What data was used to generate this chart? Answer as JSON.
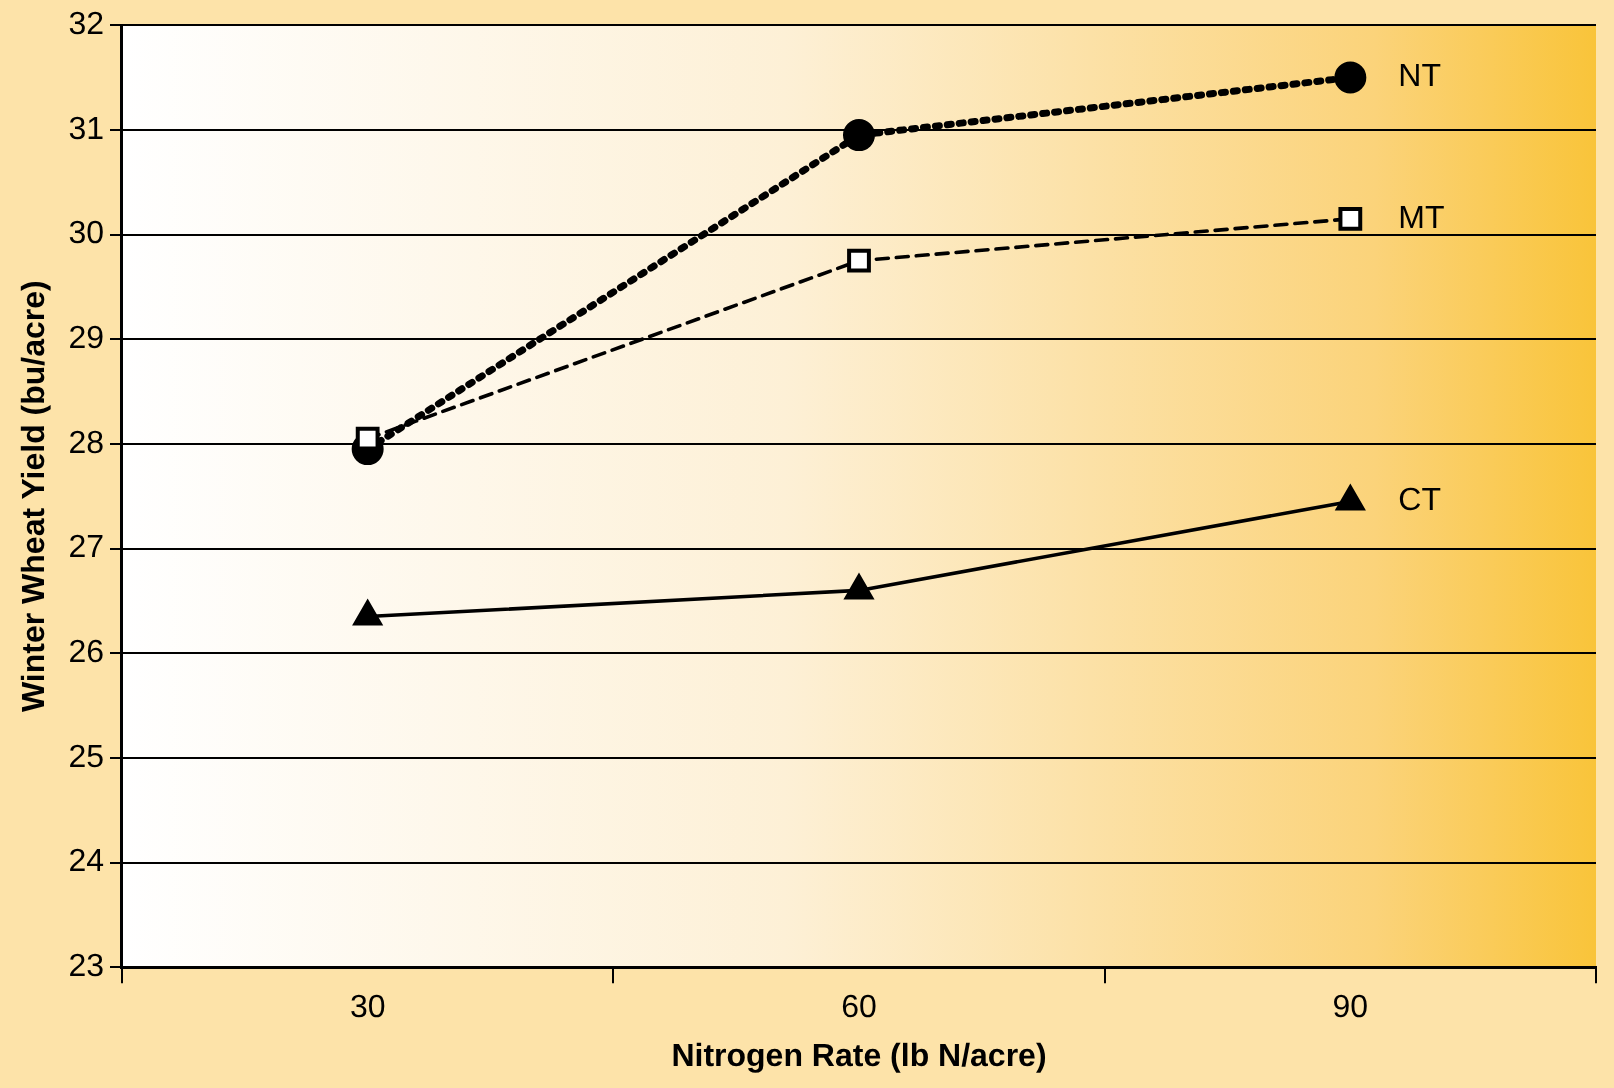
{
  "chart_data": {
    "type": "line",
    "xlabel": "Nitrogen Rate (lb N/acre)",
    "ylabel": "Winter Wheat Yield (bu/acre)",
    "categories": [
      "30",
      "60",
      "90"
    ],
    "series": [
      {
        "name": "NT",
        "color": "#000000",
        "values": [
          27.95,
          30.95,
          31.5
        ],
        "marker": "circle",
        "line_style": "dotted"
      },
      {
        "name": "MT",
        "color": "#000000",
        "values": [
          28.05,
          29.75,
          30.15
        ],
        "marker": "square",
        "line_style": "dashed"
      },
      {
        "name": "CT",
        "color": "#000000",
        "values": [
          26.35,
          26.6,
          27.45
        ],
        "marker": "triangle",
        "line_style": "solid"
      }
    ],
    "ylim": [
      23,
      32
    ],
    "yticks": [
      23,
      24,
      25,
      26,
      27,
      28,
      29,
      30,
      31,
      32
    ],
    "grid": "y",
    "legend": false
  }
}
